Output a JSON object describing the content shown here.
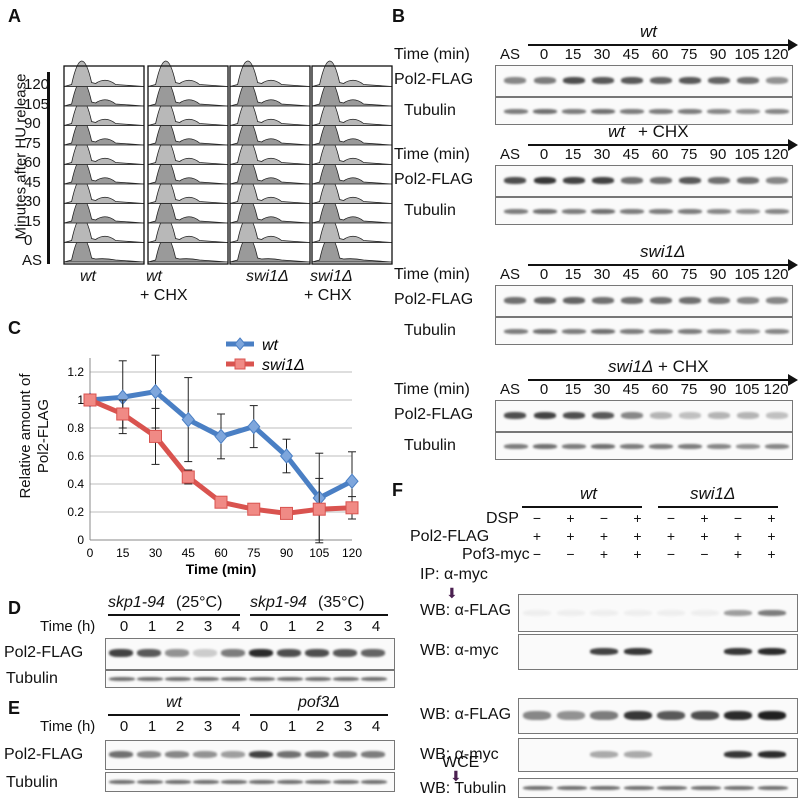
{
  "panels": {
    "A": "A",
    "B": "B",
    "C": "C",
    "D": "D",
    "E": "E",
    "F": "F"
  },
  "panelA": {
    "y_axis_label": "Minutes after HU release",
    "ticks": [
      "120",
      "105",
      "90",
      "75",
      "60",
      "45",
      "30",
      "15",
      "0",
      "AS"
    ],
    "columns": [
      {
        "line1": "wt",
        "line2": ""
      },
      {
        "line1": "wt",
        "line2": "+ CHX"
      },
      {
        "line1": "swi1Δ",
        "line2": ""
      },
      {
        "line1": "swi1Δ",
        "line2": "+ CHX"
      }
    ]
  },
  "panelB": {
    "time_label": "Time (min)",
    "as_label": "AS",
    "lanes": [
      "0",
      "15",
      "30",
      "45",
      "60",
      "75",
      "90",
      "105",
      "120"
    ],
    "blots": [
      {
        "title": "wt",
        "title_suffix": "",
        "row1": "Pol2-FLAG",
        "row2": "Tubulin"
      },
      {
        "title": "wt",
        "title_suffix": " + CHX",
        "row1": "Pol2-FLAG",
        "row2": "Tubulin"
      },
      {
        "title": "swi1Δ",
        "title_suffix": "",
        "row1": "Pol2-FLAG",
        "row2": "Tubulin"
      },
      {
        "title": "swi1Δ",
        "title_suffix": " + CHX",
        "row1": "Pol2-FLAG",
        "row2": "Tubulin"
      }
    ]
  },
  "chart_data": {
    "type": "line",
    "x": [
      0,
      15,
      30,
      45,
      60,
      75,
      90,
      105,
      120
    ],
    "xticks": [
      "0",
      "15",
      "30",
      "45",
      "60",
      "75",
      "90",
      "105",
      "120"
    ],
    "yticks": [
      "0",
      "0.2",
      "0.4",
      "0.6",
      "0.8",
      "1",
      "1.2"
    ],
    "xlabel": "Time (min)",
    "ylabel": "Relative amount of Pol2-FLAG",
    "ylim": [
      0,
      1.3
    ],
    "grid": true,
    "legend_position": "top-right",
    "series": [
      {
        "name": "wt",
        "color": "#4a7fc4",
        "marker": "diamond",
        "values": [
          1.0,
          1.02,
          1.06,
          0.86,
          0.74,
          0.81,
          0.6,
          0.3,
          0.42
        ],
        "errors": [
          0.0,
          0.26,
          0.26,
          0.3,
          0.16,
          0.15,
          0.12,
          0.32,
          0.21
        ]
      },
      {
        "name": "swi1Δ",
        "color": "#d9534f",
        "marker": "square",
        "values": [
          1.0,
          0.9,
          0.74,
          0.45,
          0.27,
          0.22,
          0.19,
          0.22,
          0.23
        ],
        "errors": [
          0.0,
          0.1,
          0.2,
          0.05,
          0.04,
          0.03,
          0.03,
          0.22,
          0.08
        ]
      }
    ]
  },
  "panelD": {
    "cond1": "skp1-94",
    "cond1_temp": " (25°C)",
    "cond2": "skp1-94",
    "cond2_temp": " (35°C)",
    "time_label": "Time (h)",
    "lanes": [
      "0",
      "1",
      "2",
      "3",
      "4",
      "0",
      "1",
      "2",
      "3",
      "4"
    ],
    "row1": "Pol2-FLAG",
    "row2": "Tubulin"
  },
  "panelE": {
    "cond1": "wt",
    "cond2": "pof3Δ",
    "time_label": "Time (h)",
    "lanes": [
      "0",
      "1",
      "2",
      "3",
      "4",
      "0",
      "1",
      "2",
      "3",
      "4"
    ],
    "row1": "Pol2-FLAG",
    "row2": "Tubulin"
  },
  "panelF": {
    "group1": "wt",
    "group2": "swi1Δ",
    "row_labels": {
      "dsp": "DSP",
      "pol2": "Pol2-FLAG",
      "pof3": "Pof3-myc",
      "ip": "IP: α-myc",
      "wce": "WCE"
    },
    "dsp": [
      "−",
      "+",
      "−",
      "+",
      "−",
      "+",
      "−",
      "+"
    ],
    "pol2": [
      "+",
      "+",
      "+",
      "+",
      "+",
      "+",
      "+",
      "+"
    ],
    "pof3": [
      "−",
      "−",
      "+",
      "+",
      "−",
      "−",
      "+",
      "+"
    ],
    "blots": [
      "WB: α-FLAG",
      "WB: α-myc",
      "WB: α-FLAG",
      "WB: α-myc",
      "WB: Tubulin"
    ]
  }
}
